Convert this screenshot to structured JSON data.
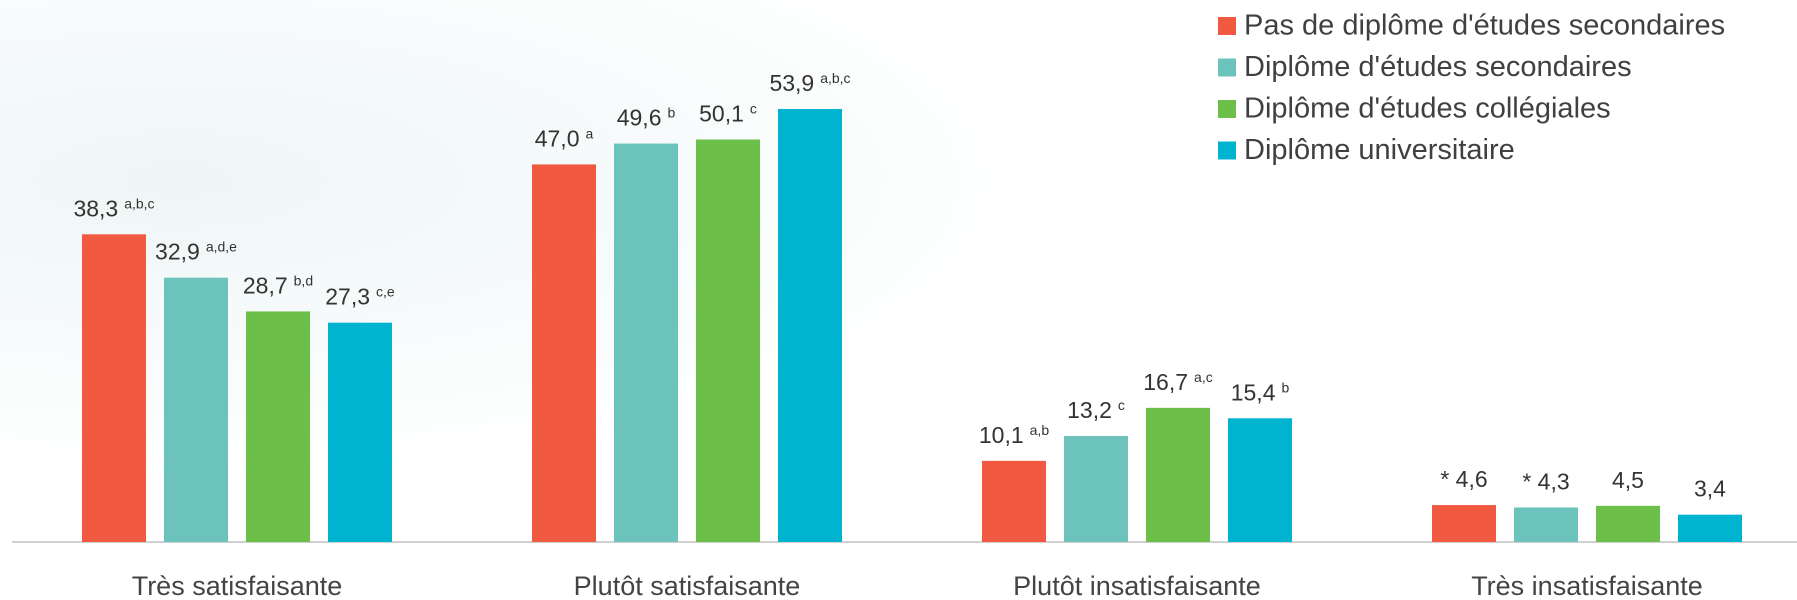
{
  "chart_data": {
    "type": "bar",
    "categories": [
      "Très satisfaisante",
      "Plutôt satisfaisante",
      "Plutôt insatisfaisante",
      "Très insatisfaisante"
    ],
    "series": [
      {
        "name": "Pas de diplôme d'études secondaires",
        "color": "#f15a40",
        "values": [
          38.3,
          47.0,
          10.1,
          4.6
        ],
        "value_labels": [
          "38,3",
          "47,0",
          "10,1",
          "* 4,6"
        ],
        "value_notes": [
          "a,b,c",
          "a",
          "a,b",
          null
        ]
      },
      {
        "name": "Diplôme d'études secondaires",
        "color": "#6cc3bb",
        "values": [
          32.9,
          49.6,
          13.2,
          4.3
        ],
        "value_labels": [
          "32,9",
          "49,6",
          "13,2",
          "* 4,3"
        ],
        "value_notes": [
          "a,d,e",
          "b",
          "c",
          null
        ]
      },
      {
        "name": "Diplôme d'études collégiales",
        "color": "#6cc04a",
        "values": [
          28.7,
          50.1,
          16.7,
          4.5
        ],
        "value_labels": [
          "28,7",
          "50,1",
          "16,7",
          "4,5"
        ],
        "value_notes": [
          "b,d",
          "c",
          "a,c",
          null
        ]
      },
      {
        "name": "Diplôme universitaire",
        "color": "#00b4d0",
        "values": [
          27.3,
          53.9,
          15.4,
          3.4
        ],
        "value_labels": [
          "27,3",
          "53,9",
          "15,4",
          "3,4"
        ],
        "value_notes": [
          "c,e",
          "a,b,c",
          "b",
          null
        ]
      }
    ]
  }
}
